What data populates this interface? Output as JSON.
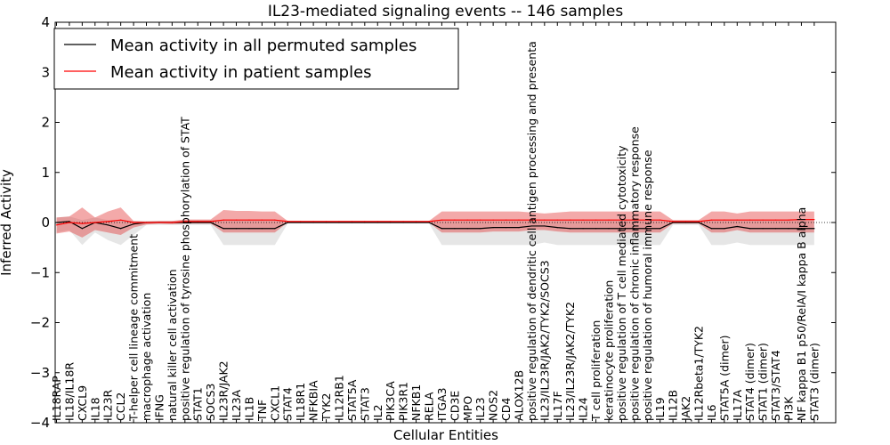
{
  "chart_data": {
    "type": "line",
    "title": "IL23-mediated signaling events -- 146 samples",
    "xlabel": "Cellular Entities",
    "ylabel": "Inferred Activity",
    "ylim": [
      -4,
      4
    ],
    "yticks": [
      "4",
      "3",
      "2",
      "1",
      "0",
      "−1",
      "−2",
      "−3",
      "−4"
    ],
    "legend_position": "top-left",
    "categories": [
      "IL18RAP",
      "IL18/IL18R",
      "CXCL9",
      "IL18",
      "IL23R",
      "CCL2",
      "T-helper cell lineage commitment",
      "macrophage activation",
      "IFNG",
      "natural killer cell activation",
      "positive regulation of tyrosine phosphorylation of STAT",
      "STAT1",
      "SOCS3",
      "IL23R/JAK2",
      "IL23A",
      "IL1B",
      "TNF",
      "CXCL1",
      "STAT4",
      "IL18R1",
      "NFKBIA",
      "TYK2",
      "IL12RB1",
      "STAT5A",
      "STAT3",
      "IL2",
      "PIK3CA",
      "PIK3R1",
      "NFKB1",
      "RELA",
      "ITGA3",
      "CD3E",
      "MPO",
      "IL23",
      "NOS2",
      "CD4",
      "ALOX12B",
      "positive regulation of dendritic cell antigen processing and presenta",
      "IL23/IL23R/JAK2/TYK2/SOCS3",
      "IL17F",
      "IL23/IL23R/JAK2/TYK2",
      "IL24",
      "T cell proliferation",
      "keratinocyte proliferation",
      "positive regulation of T cell mediated cytotoxicity",
      "positive regulation of chronic inflammatory response",
      "positive regulation of humoral immune response",
      "IL19",
      "IL12B",
      "JAK2",
      "IL12Rbeta1/TYK2",
      "IL6",
      "STAT5A (dimer)",
      "IL17A",
      "STAT4 (dimer)",
      "STAT1 (dimer)",
      "STAT3/STAT4",
      "PI3K",
      "NF kappa B1 p50/RelA/I kappa B alpha",
      "STAT3 (dimer)"
    ],
    "series": [
      {
        "name": "Mean activity in all permuted samples",
        "color": "#000000",
        "values": [
          0.0,
          0.02,
          -0.12,
          0.0,
          -0.05,
          -0.12,
          -0.03,
          0.0,
          0.0,
          0.0,
          0.0,
          0.0,
          0.0,
          -0.12,
          -0.12,
          -0.12,
          -0.12,
          -0.12,
          0.0,
          0.0,
          0.0,
          0.0,
          0.0,
          0.0,
          0.0,
          0.0,
          0.0,
          0.0,
          0.0,
          0.0,
          -0.12,
          -0.12,
          -0.12,
          -0.12,
          -0.1,
          -0.1,
          -0.1,
          -0.07,
          -0.07,
          -0.1,
          -0.12,
          -0.12,
          -0.12,
          -0.12,
          -0.12,
          -0.12,
          -0.12,
          -0.12,
          0.0,
          0.0,
          0.0,
          -0.12,
          -0.12,
          -0.08,
          -0.12,
          -0.12,
          -0.12,
          -0.12,
          -0.12,
          -0.12
        ],
        "band_low": [
          -0.2,
          -0.15,
          -0.45,
          -0.2,
          -0.35,
          -0.45,
          -0.25,
          -0.05,
          -0.05,
          -0.05,
          -0.05,
          -0.05,
          -0.05,
          -0.45,
          -0.45,
          -0.45,
          -0.45,
          -0.45,
          -0.02,
          -0.02,
          -0.02,
          -0.02,
          -0.02,
          -0.02,
          -0.02,
          -0.02,
          -0.02,
          -0.02,
          -0.02,
          -0.02,
          -0.45,
          -0.45,
          -0.45,
          -0.45,
          -0.45,
          -0.45,
          -0.45,
          -0.45,
          -0.4,
          -0.45,
          -0.45,
          -0.45,
          -0.45,
          -0.45,
          -0.45,
          -0.45,
          -0.45,
          -0.45,
          -0.05,
          -0.05,
          -0.05,
          -0.45,
          -0.45,
          -0.4,
          -0.45,
          -0.45,
          -0.45,
          -0.45,
          -0.45,
          -0.45
        ],
        "band_high": [
          0.1,
          0.12,
          0.05,
          0.1,
          0.05,
          0.05,
          0.03,
          0.03,
          0.03,
          0.03,
          0.05,
          0.05,
          0.05,
          0.05,
          0.05,
          0.05,
          0.05,
          0.05,
          0.02,
          0.02,
          0.02,
          0.02,
          0.02,
          0.02,
          0.02,
          0.02,
          0.02,
          0.02,
          0.02,
          0.02,
          0.05,
          0.05,
          0.05,
          0.05,
          0.05,
          0.05,
          0.05,
          0.05,
          0.05,
          0.05,
          0.05,
          0.05,
          0.05,
          0.05,
          0.05,
          0.05,
          0.05,
          0.05,
          0.03,
          0.03,
          0.03,
          0.05,
          0.05,
          0.05,
          0.05,
          0.05,
          0.05,
          0.05,
          0.05,
          0.05
        ]
      },
      {
        "name": "Mean activity in patient samples",
        "color": "#ff0000",
        "values": [
          -0.05,
          0.0,
          -0.02,
          0.0,
          0.02,
          0.05,
          0.0,
          0.0,
          0.0,
          0.0,
          0.02,
          0.02,
          0.02,
          0.05,
          0.05,
          0.05,
          0.05,
          0.05,
          0.02,
          0.02,
          0.02,
          0.02,
          0.02,
          0.02,
          0.02,
          0.02,
          0.02,
          0.02,
          0.02,
          0.02,
          0.05,
          0.05,
          0.05,
          0.05,
          0.05,
          0.05,
          0.05,
          0.05,
          0.05,
          0.05,
          0.05,
          0.05,
          0.05,
          0.05,
          0.05,
          0.05,
          0.05,
          0.05,
          0.02,
          0.02,
          0.02,
          0.05,
          0.05,
          0.05,
          0.05,
          0.05,
          0.05,
          0.05,
          0.06,
          0.06
        ],
        "band_low": [
          -0.22,
          -0.18,
          -0.3,
          -0.15,
          -0.2,
          -0.25,
          -0.1,
          -0.04,
          -0.02,
          -0.03,
          -0.02,
          -0.02,
          -0.02,
          -0.2,
          -0.2,
          -0.2,
          -0.2,
          -0.2,
          0.0,
          0.0,
          0.0,
          0.0,
          0.0,
          0.0,
          0.0,
          0.0,
          0.0,
          0.0,
          0.0,
          0.0,
          -0.2,
          -0.2,
          -0.2,
          -0.2,
          -0.18,
          -0.18,
          -0.18,
          -0.15,
          -0.15,
          -0.18,
          -0.2,
          -0.2,
          -0.2,
          -0.2,
          -0.2,
          -0.2,
          -0.2,
          -0.2,
          -0.02,
          -0.02,
          -0.02,
          -0.2,
          -0.2,
          -0.15,
          -0.2,
          -0.2,
          -0.2,
          -0.2,
          -0.2,
          -0.2
        ],
        "band_high": [
          0.1,
          0.12,
          0.3,
          0.1,
          0.22,
          0.3,
          0.03,
          0.02,
          0.03,
          0.03,
          0.06,
          0.06,
          0.06,
          0.25,
          0.23,
          0.23,
          0.22,
          0.22,
          0.03,
          0.03,
          0.03,
          0.03,
          0.03,
          0.03,
          0.03,
          0.03,
          0.03,
          0.03,
          0.03,
          0.03,
          0.22,
          0.22,
          0.22,
          0.22,
          0.22,
          0.22,
          0.22,
          0.2,
          0.18,
          0.2,
          0.22,
          0.22,
          0.22,
          0.22,
          0.22,
          0.22,
          0.22,
          0.22,
          0.05,
          0.05,
          0.05,
          0.22,
          0.22,
          0.18,
          0.22,
          0.22,
          0.22,
          0.22,
          0.22,
          0.22
        ]
      }
    ],
    "baseline": 0
  }
}
